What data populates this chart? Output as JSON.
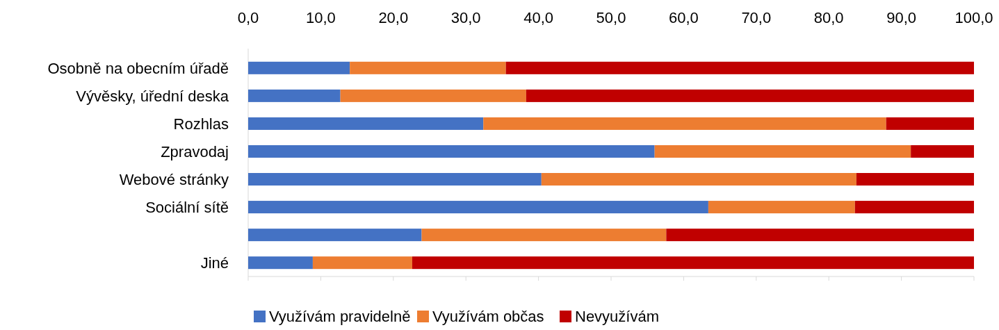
{
  "chart_data": {
    "type": "bar",
    "orientation": "horizontal",
    "stacked": true,
    "categories": [
      "Osobně na obecním úřadě",
      "Vývěsky, úřední deska",
      "Rozhlas",
      "Zpravodaj",
      "Webové stránky",
      "Sociální sítě",
      null,
      "Jiné"
    ],
    "series": [
      {
        "name": "Využívám pravidelně",
        "color": "#4472c4",
        "values": [
          14.0,
          12.7,
          32.4,
          56.0,
          40.4,
          63.4,
          23.9,
          8.9
        ]
      },
      {
        "name": "Využívám občas",
        "color": "#ed7d31",
        "values": [
          21.5,
          25.6,
          55.5,
          35.3,
          43.4,
          20.2,
          33.7,
          13.7
        ]
      },
      {
        "name": "Nevyužívám",
        "color": "#c00000",
        "values": [
          64.5,
          61.7,
          12.1,
          8.7,
          16.2,
          16.4,
          42.4,
          77.4
        ]
      }
    ],
    "xlim": [
      0,
      100
    ],
    "xticks": [
      {
        "value": 0,
        "label": "0,0"
      },
      {
        "value": 10,
        "label": "10,0"
      },
      {
        "value": 20,
        "label": "20,0"
      },
      {
        "value": 30,
        "label": "30,0"
      },
      {
        "value": 40,
        "label": "40,0"
      },
      {
        "value": 50,
        "label": "50,0"
      },
      {
        "value": 60,
        "label": "60,0"
      },
      {
        "value": 70,
        "label": "70,0"
      },
      {
        "value": 80,
        "label": "80,0"
      },
      {
        "value": 90,
        "label": "90,0"
      },
      {
        "value": 100,
        "label": "100,0"
      }
    ],
    "legend": "bottom"
  }
}
